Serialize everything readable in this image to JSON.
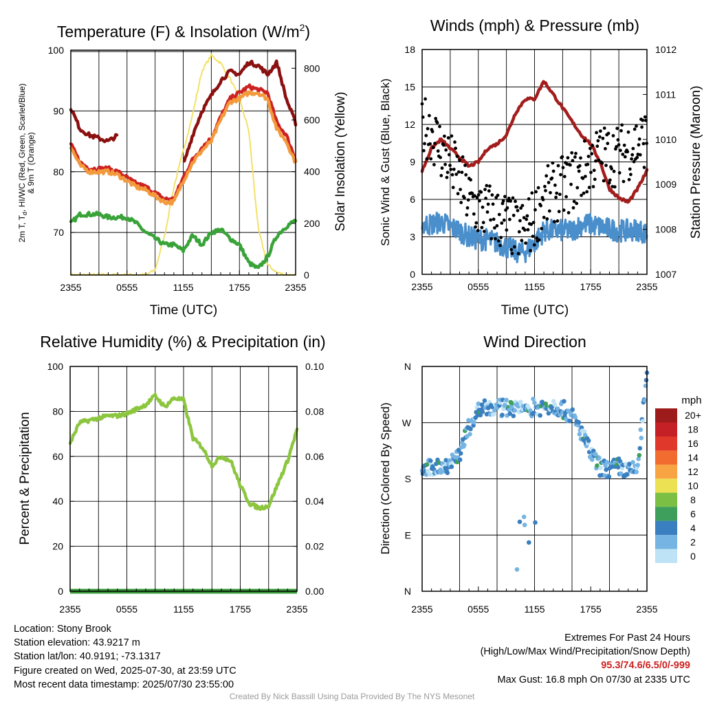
{
  "chart_data": [
    {
      "type": "line",
      "title": "Temperature (F) & Insolation (W/m²)",
      "title_main": "Temperature (F) & Insolation (W/m",
      "title_sup": "2",
      "title_end": ")",
      "xlabel": "Time (UTC)",
      "ylabel_left_line1": "2m T, T",
      "ylabel_left_sub": "d",
      "ylabel_left_line1_end": ", HI/WC (Red, Green, Scarlet/Blue)",
      "ylabel_left_line2": "& 9m T (Orange)",
      "ylabel_right": "Solar Insolation (Yellow)",
      "xticks": [
        "2355",
        "0555",
        "1155",
        "1755",
        "2355"
      ],
      "ylim_left": [
        63,
        100
      ],
      "yticks_left": [
        "70",
        "80",
        "90",
        "100"
      ],
      "ylim_right": [
        0,
        870
      ],
      "yticks_right": [
        "0",
        "200",
        "400",
        "600",
        "800"
      ],
      "hours": [
        0,
        1,
        2,
        3,
        4,
        5,
        6,
        7,
        8,
        9,
        10,
        11,
        12,
        13,
        14,
        15,
        16,
        17,
        18,
        19,
        20,
        21,
        22,
        23,
        24
      ],
      "series": [
        {
          "color": "#cc2222",
          "values": [
            84.5,
            81.5,
            80.5,
            80.5,
            80.5,
            80,
            79,
            78,
            77.5,
            76.5,
            75.5,
            75.5,
            79,
            82,
            84,
            85.5,
            89,
            92,
            93,
            94,
            93.5,
            93,
            88,
            86,
            82
          ]
        },
        {
          "color": "#f39a3c",
          "values": [
            84,
            81,
            80,
            80,
            80,
            79.5,
            78.5,
            77.5,
            77,
            76,
            75,
            75,
            78.5,
            81.5,
            83.5,
            85,
            88.5,
            91.5,
            92,
            93,
            93,
            92,
            87,
            85,
            81.5
          ]
        },
        {
          "color": "#8b1010",
          "values": [
            90.5,
            87,
            86,
            85.5,
            85,
            86,
            null,
            null,
            null,
            null,
            null,
            null,
            81,
            86,
            90,
            92.5,
            95,
            96.5,
            96,
            98,
            97.5,
            96,
            98,
            92,
            88
          ]
        },
        {
          "color": "#39a339",
          "values": [
            71.5,
            73,
            73,
            73,
            72.5,
            72.5,
            72.5,
            71.5,
            70,
            69,
            68,
            68,
            67,
            69.5,
            68,
            70,
            70.5,
            69,
            68,
            65,
            64,
            66,
            69.5,
            71,
            72
          ]
        },
        {
          "color": "#f4e066",
          "axis": "right",
          "values": [
            0,
            0,
            0,
            0,
            0,
            0,
            0,
            0,
            0,
            20,
            150,
            340,
            480,
            620,
            790,
            850,
            820,
            760,
            680,
            560,
            180,
            40,
            10,
            0,
            0
          ]
        }
      ]
    },
    {
      "type": "scatter",
      "title": "Winds (mph) & Pressure (mb)",
      "xlabel": "Time (UTC)",
      "ylabel_left": "Sonic Wind & Gust (Blue, Black)",
      "ylabel_right": "Station Pressure (Maroon)",
      "xticks": [
        "2355",
        "0555",
        "1155",
        "1755",
        "2355"
      ],
      "ylim_left": [
        0,
        18
      ],
      "yticks_left": [
        "0",
        "3",
        "6",
        "9",
        "12",
        "15",
        "18"
      ],
      "ylim_right": [
        1007,
        1012
      ],
      "yticks_right": [
        "1007",
        "1008",
        "1009",
        "1010",
        "1011",
        "1012"
      ],
      "hours": [
        0,
        1,
        2,
        3,
        4,
        5,
        6,
        7,
        8,
        9,
        10,
        11,
        12,
        13,
        14,
        15,
        16,
        17,
        18,
        19,
        20,
        21,
        22,
        23,
        24
      ],
      "wind_mph": [
        4,
        4,
        4.2,
        3.8,
        3.5,
        3,
        2.8,
        2.8,
        2.5,
        2.2,
        1.8,
        1.8,
        2.5,
        3.5,
        3.5,
        3.5,
        3.5,
        4,
        4,
        3.8,
        3.6,
        3.5,
        3.5,
        3.6,
        3.2
      ],
      "gust_mph": [
        12,
        11.5,
        10,
        9,
        7.5,
        6,
        5.2,
        5,
        4.5,
        4.2,
        3.5,
        3.5,
        4.5,
        6,
        6.5,
        7,
        7.5,
        8,
        9,
        9.5,
        9.5,
        9.5,
        10,
        10.5,
        11
      ],
      "pressure_mb": [
        1009.3,
        1009.8,
        1010,
        1009.8,
        1009.6,
        1009.4,
        1009.5,
        1009.8,
        1009.9,
        1010.1,
        1010.6,
        1010.9,
        1010.9,
        1011.3,
        1011,
        1010.7,
        1010.4,
        1010.1,
        1009.9,
        1009.5,
        1008.9,
        1008.7,
        1008.6,
        1008.9,
        1009.3
      ]
    },
    {
      "type": "line",
      "title": "Relative Humidity (%) & Precipitation (in)",
      "ylabel": "Percent & Precipitation",
      "xticks": [
        "2355",
        "0555",
        "1155",
        "1755",
        "2355"
      ],
      "ylim_left": [
        0,
        100
      ],
      "yticks_left": [
        "0",
        "20",
        "40",
        "60",
        "80",
        "100"
      ],
      "ylim_right": [
        0,
        0.1
      ],
      "yticks_right": [
        "0.00",
        "0.02",
        "0.04",
        "0.06",
        "0.08",
        "0.10"
      ],
      "hours": [
        0,
        1,
        2,
        3,
        4,
        5,
        6,
        7,
        8,
        9,
        10,
        11,
        12,
        13,
        14,
        15,
        16,
        17,
        18,
        19,
        20,
        21,
        22,
        23,
        24
      ],
      "series": [
        {
          "color": "#8cc63f",
          "name": "humidity",
          "values": [
            66,
            75,
            76,
            77,
            78,
            78,
            79,
            81,
            83,
            87,
            82,
            86,
            85,
            68,
            64,
            56,
            60,
            58,
            47,
            39,
            37,
            38,
            48,
            58,
            72
          ]
        },
        {
          "color": "#3a9a3a",
          "name": "precipitation",
          "axis": "right",
          "values": [
            0,
            0,
            0,
            0,
            0,
            0,
            0,
            0,
            0,
            0,
            0,
            0,
            0,
            0,
            0,
            0,
            0,
            0,
            0,
            0,
            0,
            0,
            0,
            0,
            0
          ]
        }
      ]
    },
    {
      "type": "scatter",
      "title": "Wind Direction",
      "ylabel": "Direction (Colored By Speed)",
      "xticks": [
        "2355",
        "0555",
        "1155",
        "1755",
        "2355"
      ],
      "ylim": [
        0,
        360
      ],
      "yticks": [
        "N",
        "E",
        "S",
        "W",
        "N"
      ],
      "hours": [
        0,
        1,
        2,
        3,
        4,
        5,
        6,
        7,
        8,
        9,
        10,
        11,
        12,
        13,
        14,
        15,
        16,
        17,
        18,
        19,
        20,
        21,
        22,
        23,
        24
      ],
      "direction_deg": [
        195,
        197,
        200,
        205,
        220,
        262,
        290,
        292,
        292,
        294,
        292,
        295,
        294,
        296,
        298,
        292,
        280,
        255,
        220,
        198,
        195,
        200,
        190,
        198,
        345
      ],
      "colorbar": {
        "unit": "mph",
        "labels": [
          "20+",
          "18",
          "16",
          "14",
          "12",
          "10",
          "8",
          "6",
          "4",
          "2",
          "0"
        ],
        "colors": [
          "#9e1b1b",
          "#c42026",
          "#e0382b",
          "#f26b2f",
          "#f9a443",
          "#ece053",
          "#7bbf44",
          "#3e9f5c",
          "#3a7fbf",
          "#76b4e3",
          "#bfe3f6"
        ]
      }
    }
  ],
  "info": {
    "location": "Location: Stony Brook",
    "elevation": "Station elevation: 43.9217 m",
    "latlon": "Station lat/lon: 40.9191; -73.1317",
    "created": "Figure created on Wed, 2025-07-30, at 23:59 UTC",
    "recent": "Most recent data timestamp: 2025/07/30 23:55:00"
  },
  "extremes": {
    "line1": "Extremes For Past 24 Hours",
    "line2": "(High/Low/Max Wind/Precipitation/Snow Depth)",
    "values": "95.3/74.6/6.5/0/-999",
    "gust": "Max Gust: 16.8 mph On 07/30 at 2335 UTC"
  },
  "credit": "Created By Nick Bassill Using Data Provided By The NYS Mesonet"
}
